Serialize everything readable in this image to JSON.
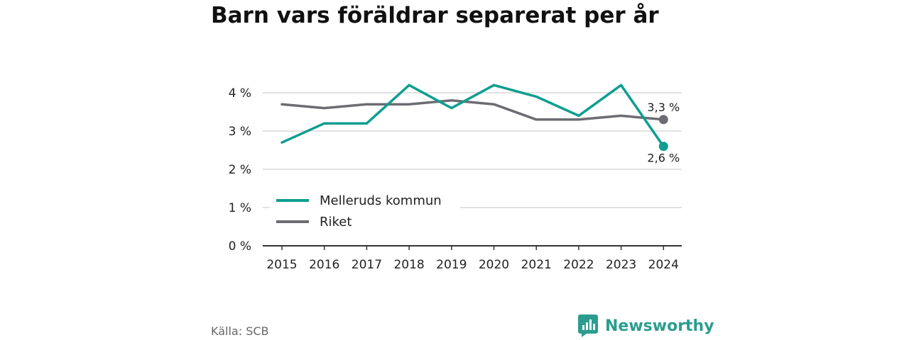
{
  "title": "Barn vars föräldrar separerat per år",
  "source": "Källa: SCB",
  "brand": {
    "name": "Newsworthy",
    "icon": "newsworthy-logo-icon"
  },
  "colors": {
    "teal": "#0f9e90",
    "gray": "#6e6c73",
    "grid": "#d9d9d9",
    "axis": "#333333"
  },
  "chart_data": {
    "type": "line",
    "title": "Barn vars föräldrar separerat per år",
    "x": [
      2015,
      2016,
      2017,
      2018,
      2019,
      2020,
      2021,
      2022,
      2023,
      2024
    ],
    "x_tick_labels": [
      "2015",
      "2016",
      "2017",
      "2018",
      "2019",
      "2020",
      "2021",
      "2022",
      "2023",
      "2024"
    ],
    "y_tick_values": [
      0,
      1,
      2,
      3,
      4
    ],
    "y_tick_labels": [
      "0 %",
      "1 %",
      "2 %",
      "3 %",
      "4 %"
    ],
    "ylim": [
      0,
      4.3
    ],
    "grid": true,
    "legend_position": "bottom-left",
    "series": [
      {
        "name": "Melleruds kommun",
        "color": "#0f9e90",
        "values": [
          2.7,
          3.2,
          3.2,
          4.2,
          3.6,
          4.2,
          3.9,
          3.4,
          4.2,
          2.6
        ],
        "end_label": "2,6 %"
      },
      {
        "name": "Riket",
        "color": "#6e6c73",
        "values": [
          3.7,
          3.6,
          3.7,
          3.7,
          3.8,
          3.7,
          3.3,
          3.3,
          3.4,
          3.3
        ],
        "end_label": "3,3 %"
      }
    ]
  }
}
